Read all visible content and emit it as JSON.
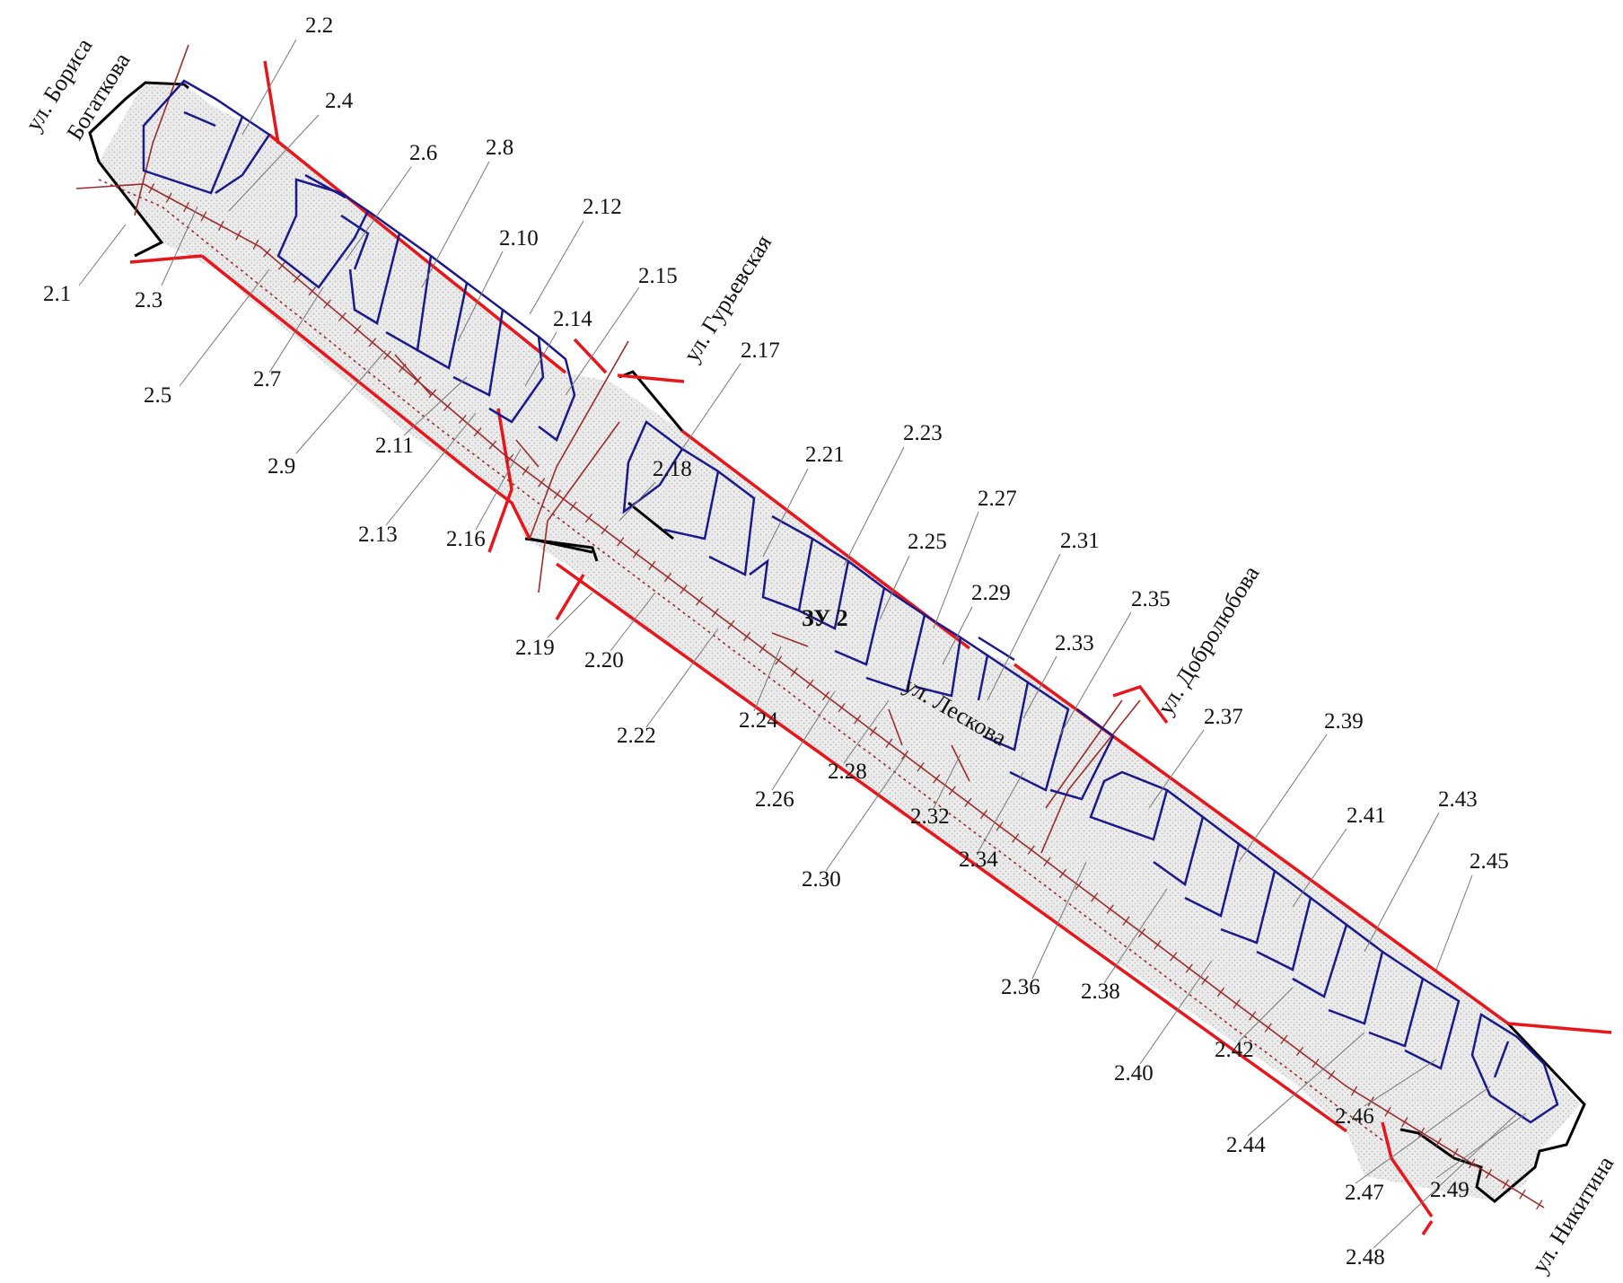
{
  "zone_label": "ЗУ 2",
  "colors": {
    "red_line": "#e8151b",
    "boundary": "#000000",
    "buildings": "#1a1a8c",
    "hatch": "#9b2b2b",
    "fill": "#e4e4e4"
  },
  "streets": {
    "borisa_1": "ул. Бориса",
    "borisa_2": "Богаткова",
    "guryevskaya": "ул. Гурьевская",
    "leskova": "ул. Лескова",
    "dobrolyubova": "ул. Добролюбова",
    "nikitina": "ул. Никитина"
  },
  "parcels": [
    "2.1",
    "2.2",
    "2.3",
    "2.4",
    "2.5",
    "2.6",
    "2.7",
    "2.8",
    "2.9",
    "2.10",
    "2.11",
    "2.12",
    "2.13",
    "2.14",
    "2.15",
    "2.16",
    "2.17",
    "2.18",
    "2.19",
    "2.20",
    "2.21",
    "2.22",
    "2.23",
    "2.24",
    "2.25",
    "2.26",
    "2.27",
    "2.28",
    "2.29",
    "2.30",
    "2.31",
    "2.32",
    "2.33",
    "2.34",
    "2.35",
    "2.36",
    "2.37",
    "2.38",
    "2.39",
    "2.40",
    "2.41",
    "2.42",
    "2.43",
    "2.44",
    "2.45",
    "2.46",
    "2.47",
    "2.48",
    "2.49"
  ]
}
